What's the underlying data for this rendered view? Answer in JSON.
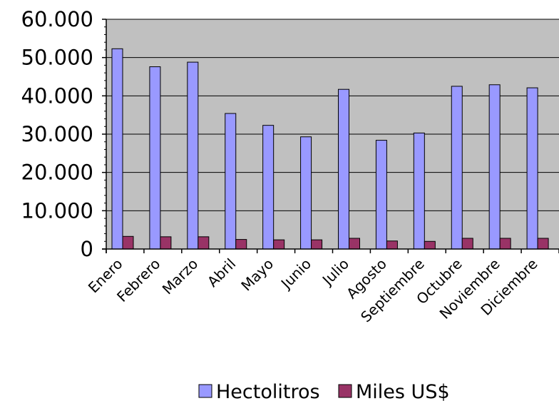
{
  "chart_data": {
    "type": "bar",
    "categories": [
      "Enero",
      "Febrero",
      "Marzo",
      "Abril",
      "Mayo",
      "Junio",
      "Julio",
      "Agosto",
      "Septiembre",
      "Octubre",
      "Noviembre",
      "Diciembre"
    ],
    "series": [
      {
        "name": "Hectolitros",
        "color": "#9999ff",
        "values": [
          52300,
          47600,
          48800,
          35400,
          32300,
          29300,
          41700,
          28400,
          30300,
          42500,
          42900,
          42100
        ]
      },
      {
        "name": "Miles US$",
        "color": "#993366",
        "values": [
          3300,
          3200,
          3200,
          2500,
          2400,
          2400,
          2800,
          2100,
          2000,
          2800,
          2800,
          2800
        ]
      }
    ],
    "yticks": [
      "0",
      "10.000",
      "20.000",
      "30.000",
      "40.000",
      "50.000",
      "60.000"
    ],
    "ylim": [
      0,
      60000
    ],
    "grid": true,
    "plot_background": "#c0c0c0",
    "legend": "bottom"
  }
}
